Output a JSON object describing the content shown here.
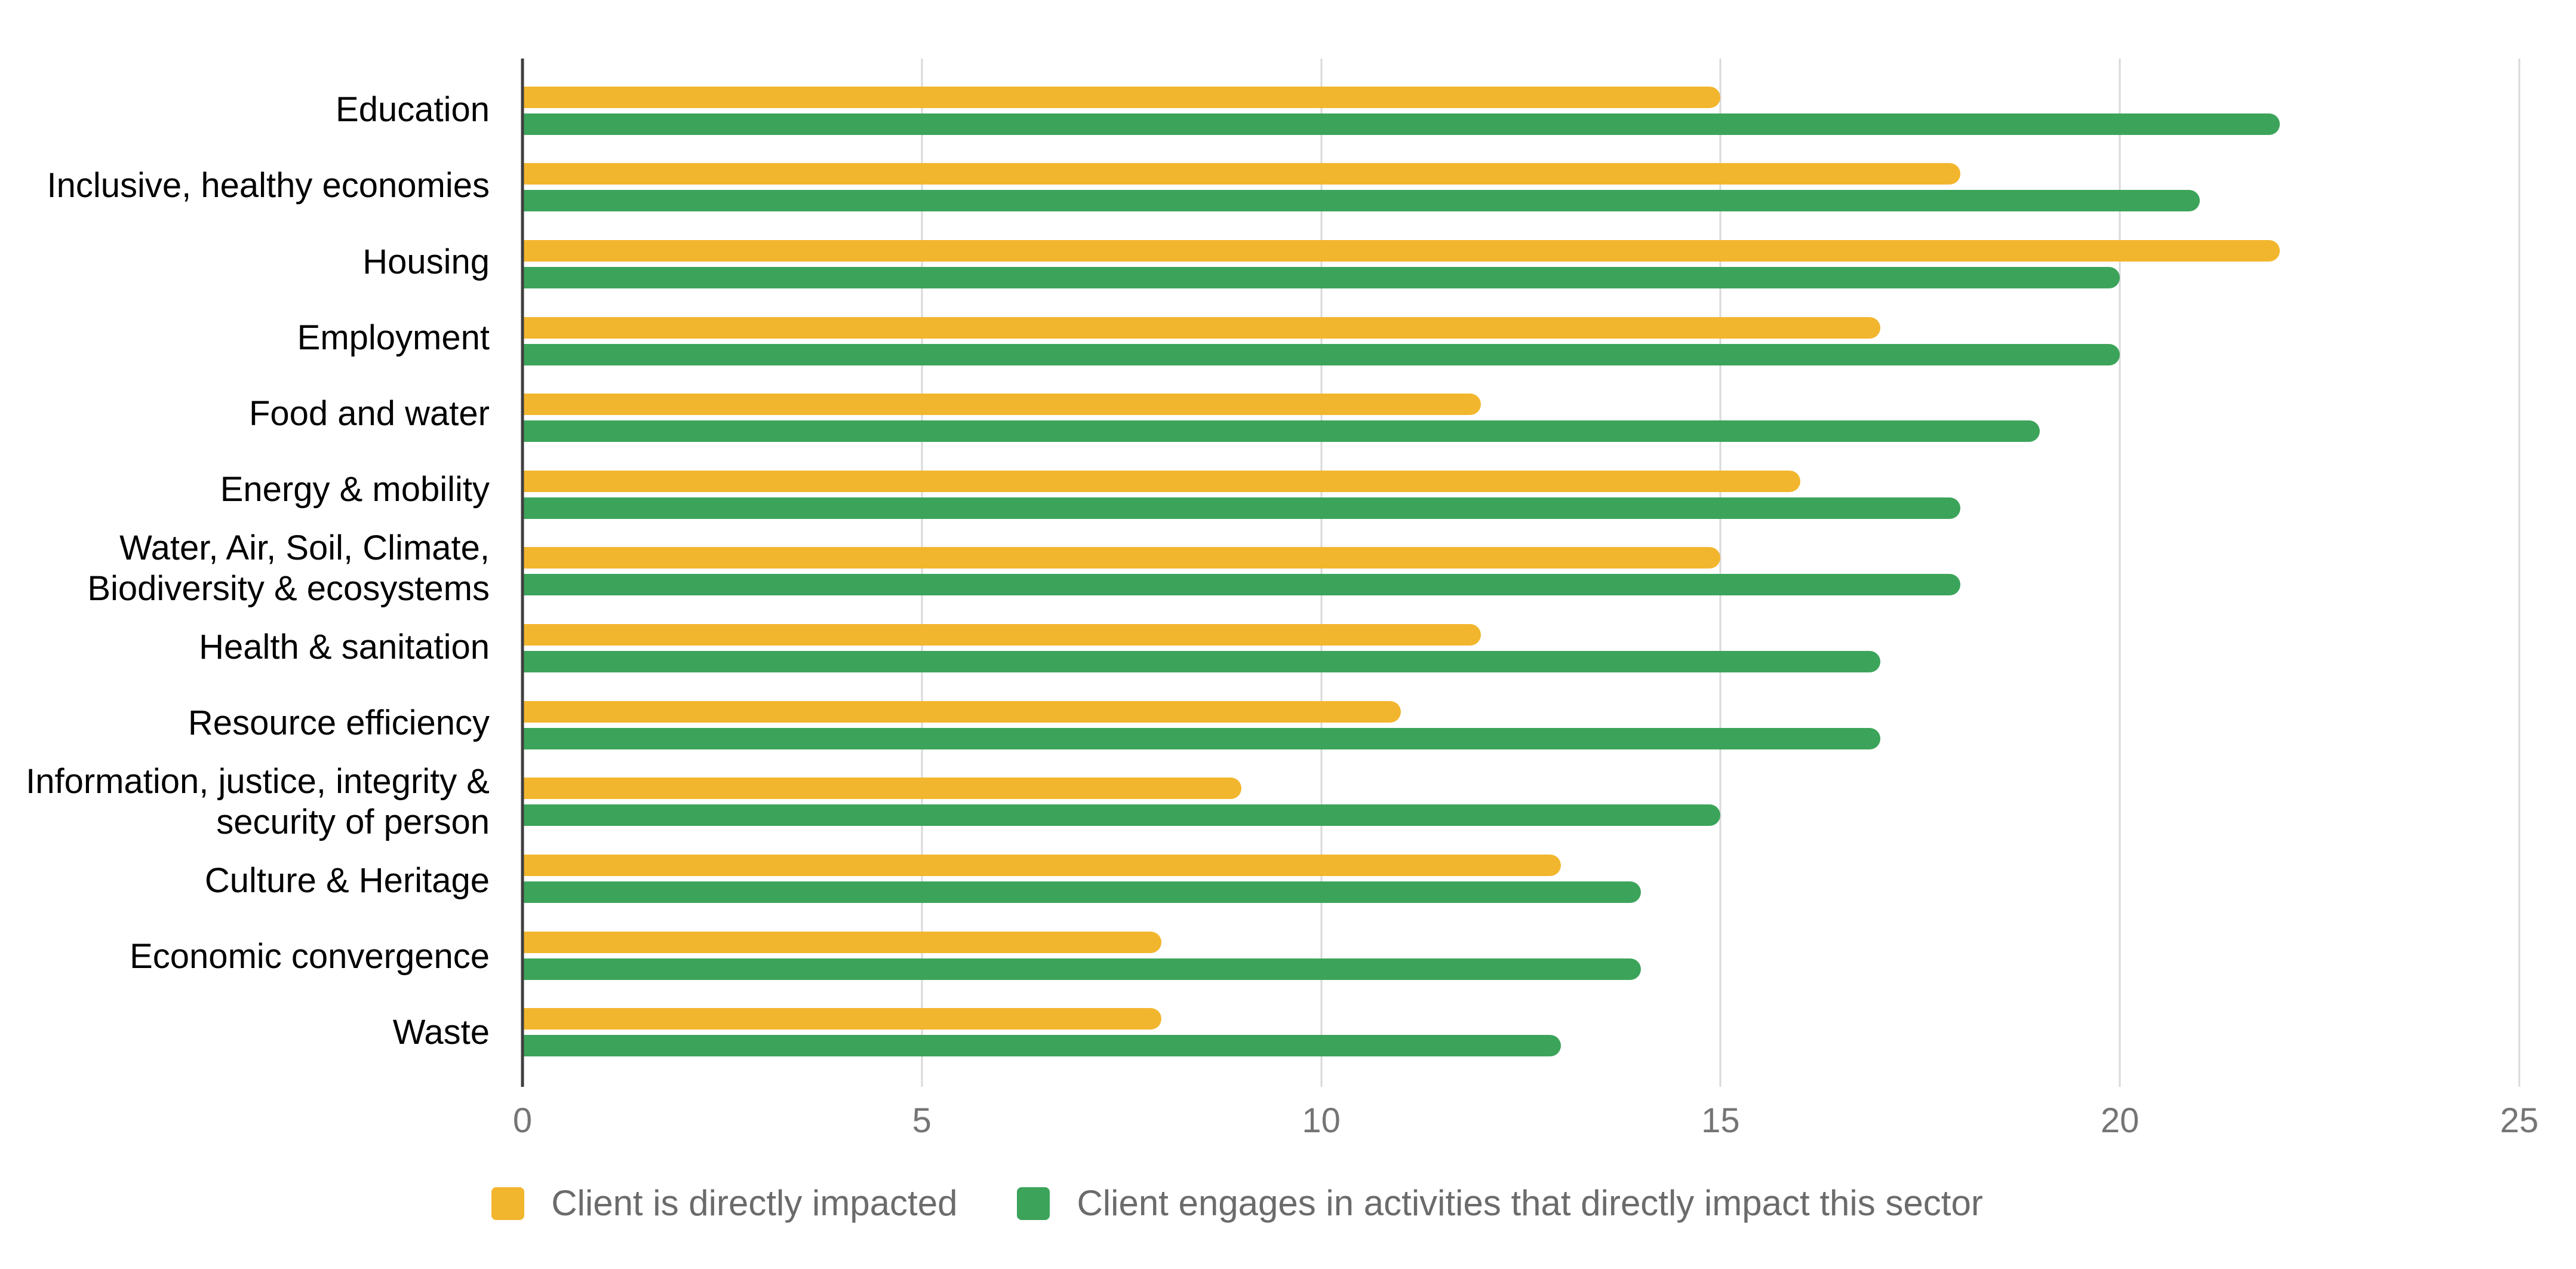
{
  "chart_data": {
    "type": "bar",
    "orientation": "horizontal",
    "title": "",
    "categories": [
      "Education",
      "Inclusive, healthy economies",
      "Housing",
      "Employment",
      "Food and water",
      "Energy & mobility",
      "Water, Air, Soil, Climate,\nBiodiversity & ecosystems",
      "Health & sanitation",
      "Resource efficiency",
      "Information, justice, integrity &\nsecurity of person",
      "Culture & Heritage",
      "Economic convergence",
      "Waste"
    ],
    "series": [
      {
        "name": "Client is directly impacted",
        "color": "#F2B62E",
        "values": [
          15,
          18,
          22,
          17,
          12,
          16,
          15,
          12,
          11,
          9,
          13,
          8,
          8
        ]
      },
      {
        "name": "Client engages in activities that directly impact this sector",
        "color": "#3CA45A",
        "values": [
          22,
          21,
          20,
          20,
          19,
          18,
          18,
          17,
          17,
          15,
          14,
          14,
          13
        ]
      }
    ],
    "xlim": [
      0,
      25
    ],
    "xticks": [
      0,
      5,
      10,
      15,
      20,
      25
    ],
    "grid": "vertical",
    "legend_position": "bottom",
    "colors": {
      "axis_line": "#3f3f3f",
      "gridline": "#d9d9d9",
      "tick_text": "#757575",
      "category_text": "#000000",
      "legend_text": "#6b6b6b"
    }
  }
}
